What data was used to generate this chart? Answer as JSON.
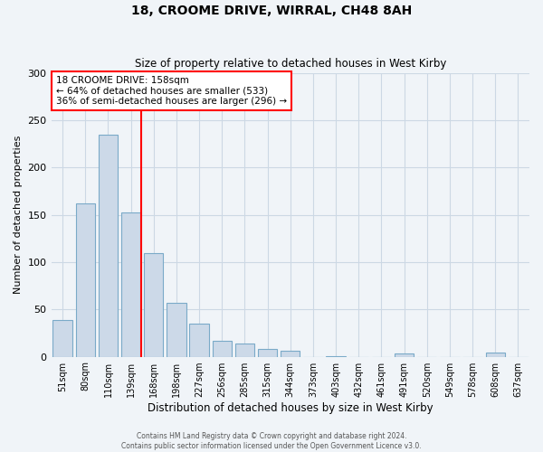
{
  "title": "18, CROOME DRIVE, WIRRAL, CH48 8AH",
  "subtitle": "Size of property relative to detached houses in West Kirby",
  "xlabel": "Distribution of detached houses by size in West Kirby",
  "ylabel": "Number of detached properties",
  "footer_line1": "Contains HM Land Registry data © Crown copyright and database right 2024.",
  "footer_line2": "Contains public sector information licensed under the Open Government Licence v3.0.",
  "bin_labels": [
    "51sqm",
    "80sqm",
    "110sqm",
    "139sqm",
    "168sqm",
    "198sqm",
    "227sqm",
    "256sqm",
    "285sqm",
    "315sqm",
    "344sqm",
    "373sqm",
    "403sqm",
    "432sqm",
    "461sqm",
    "491sqm",
    "520sqm",
    "549sqm",
    "578sqm",
    "608sqm",
    "637sqm"
  ],
  "bar_values": [
    39,
    162,
    235,
    153,
    110,
    57,
    35,
    17,
    14,
    8,
    6,
    0,
    1,
    0,
    0,
    3,
    0,
    0,
    0,
    4,
    0
  ],
  "bar_color": "#ccd9e8",
  "bar_edge_color": "#7aaac8",
  "vline_x_index": 4,
  "vline_color": "red",
  "annotation_title": "18 CROOME DRIVE: 158sqm",
  "annotation_line2": "← 64% of detached houses are smaller (533)",
  "annotation_line3": "36% of semi-detached houses are larger (296) →",
  "ylim": [
    0,
    300
  ],
  "yticks": [
    0,
    50,
    100,
    150,
    200,
    250,
    300
  ],
  "grid_color": "#ccd8e4",
  "background_color": "#f0f4f8"
}
